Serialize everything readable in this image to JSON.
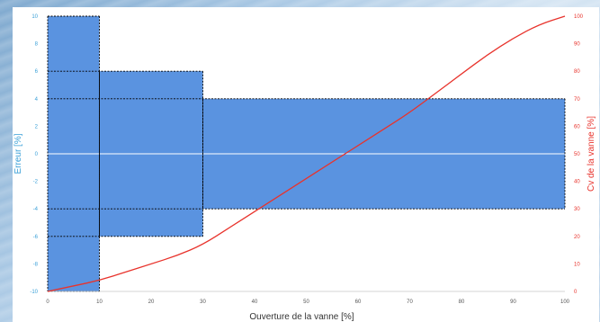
{
  "chart_data": {
    "type": "bar",
    "title": "",
    "xlabel": "Ouverture de la vanne  [%]",
    "ylabel_left": "Erreur  [%]",
    "ylabel_right": "Cv de la vanne [%]",
    "xlim": [
      0,
      100
    ],
    "ylim_left": [
      -10,
      10
    ],
    "ylim_right": [
      0,
      100
    ],
    "x_ticks": [
      "0",
      "10",
      "20",
      "30",
      "40",
      "50",
      "60",
      "70",
      "80",
      "90",
      "100"
    ],
    "y_left_ticks": [
      "10",
      "8",
      "6",
      "4",
      "2",
      "0",
      "-2",
      "-4",
      "-6",
      "-8",
      "-10"
    ],
    "y_right_ticks": [
      "100",
      "90",
      "80",
      "70",
      "60",
      "50",
      "40",
      "30",
      "20",
      "10",
      "0"
    ],
    "error_bands": [
      {
        "x_start": 0,
        "x_end": 10,
        "upper": 10,
        "lower": -10
      },
      {
        "x_start": 10,
        "x_end": 30,
        "upper": 6,
        "lower": -6
      },
      {
        "x_start": 30,
        "x_end": 100,
        "upper": 4,
        "lower": -4
      }
    ],
    "cv_curve": {
      "x": [
        0,
        5,
        10,
        15,
        20,
        25,
        30,
        35,
        40,
        45,
        50,
        55,
        60,
        65,
        70,
        75,
        80,
        85,
        90,
        95,
        100
      ],
      "y": [
        0,
        2,
        4,
        7,
        10,
        13,
        17,
        23,
        29,
        35,
        41,
        47,
        53,
        59,
        65,
        72,
        79,
        86,
        92,
        97,
        100
      ]
    },
    "colors": {
      "band_fill": "#5a93e0",
      "curve": "#e8332c",
      "left_axis": "#3aa0d8",
      "right_axis": "#e8332c",
      "zero_line": "#ffffff",
      "dashed": "#000000"
    }
  }
}
